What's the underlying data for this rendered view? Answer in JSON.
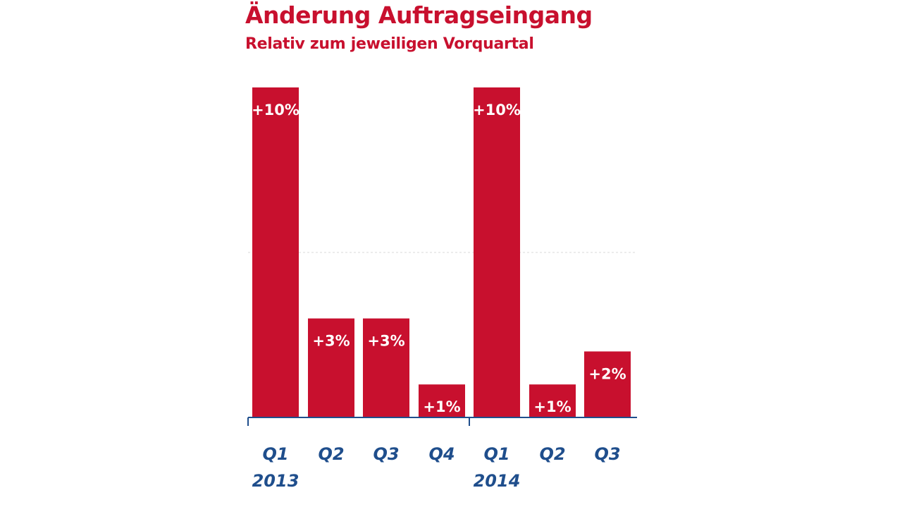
{
  "chart_data": {
    "type": "bar",
    "title": "Änderung Auftragseingang",
    "subtitle": "Relativ zum jeweiligen Vorquartal",
    "categories": [
      "Q1",
      "Q2",
      "Q3",
      "Q4",
      "Q1",
      "Q2",
      "Q3"
    ],
    "years": [
      {
        "label": "2013",
        "start_index": 0
      },
      {
        "label": "2014",
        "start_index": 4
      }
    ],
    "values": [
      10,
      3,
      3,
      1,
      10,
      1,
      2
    ],
    "value_labels": [
      "+10%",
      "+3%",
      "+3%",
      "+1%",
      "+10%",
      "+1%",
      "+2%"
    ],
    "ylim": [
      0,
      10
    ],
    "gridline": 5,
    "xlabel": "",
    "ylabel": "",
    "bar_color": "#c8102e",
    "axis_color": "#1f4e8c",
    "label_color": "#1f4e8c"
  }
}
